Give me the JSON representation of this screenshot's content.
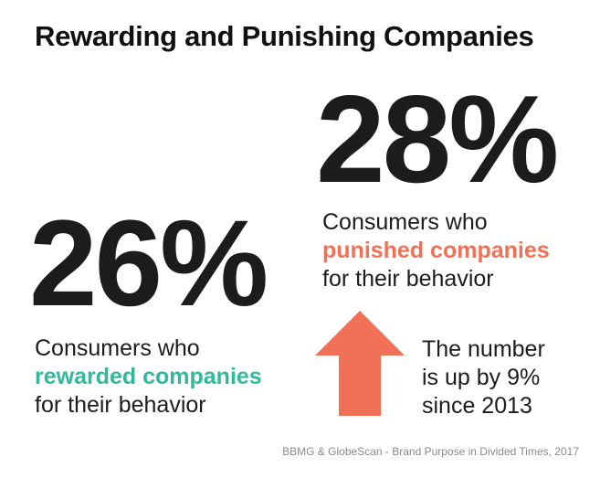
{
  "title": "Rewarding and Punishing Companies",
  "colors": {
    "punished": "#f07155",
    "rewarded": "#33b89d",
    "arrow": "#f07155"
  },
  "punished": {
    "value": "28%",
    "line1": "Consumers who",
    "highlight": "punished companies",
    "line3": "for their behavior"
  },
  "rewarded": {
    "value": "26%",
    "line1": "Consumers who",
    "highlight": "rewarded companies",
    "line3": "for their behavior"
  },
  "note": {
    "icon": "up-arrow-icon",
    "line1": "The number",
    "line2": "is up by 9%",
    "line3": "since 2013"
  },
  "source": "BBMG & GlobeScan - Brand Purpose in Divided Times, 2017"
}
